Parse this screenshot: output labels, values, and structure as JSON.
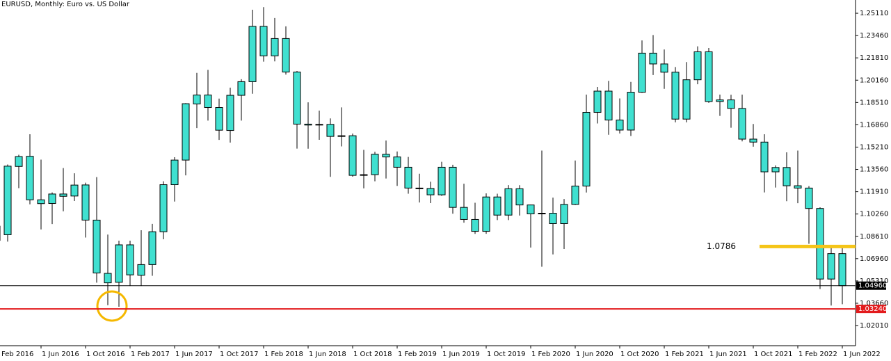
{
  "chart_data": {
    "type": "candlestick",
    "title": "EURUSD, Monthly:  Euro vs. US Dollar",
    "categories": [
      "Feb 2016",
      null,
      null,
      null,
      "1 Jun 2016",
      null,
      null,
      null,
      "1 Oct 2016",
      null,
      null,
      null,
      "1 Feb 2017",
      null,
      null,
      null,
      "1 Jun 2017",
      null,
      null,
      null,
      "1 Oct 2017",
      null,
      null,
      null,
      "1 Feb 2018",
      null,
      null,
      null,
      "1 Jun 2018",
      null,
      null,
      null,
      "1 Oct 2018",
      null,
      null,
      null,
      "1 Feb 2019",
      null,
      null,
      null,
      "1 Jun 2019",
      null,
      null,
      null,
      "1 Oct 2019",
      null,
      null,
      null,
      "1 Feb 2020",
      null,
      null,
      null,
      "1 Jun 2020",
      null,
      null,
      null,
      "1 Oct 2020",
      null,
      null,
      null,
      "1 Feb 2021",
      null,
      null,
      null,
      "1 Jun 2021",
      null,
      null,
      null,
      "1 Oct 2021",
      null,
      null,
      null,
      "1 Feb 2022",
      null,
      null,
      null,
      "1 Jun 2022"
    ],
    "open": [
      1.0831,
      1.0873,
      1.1378,
      1.1453,
      1.1131,
      1.1104,
      1.1174,
      1.1159,
      1.1241,
      1.0981,
      1.0587,
      1.0521,
      1.0798,
      1.0573,
      1.0652,
      1.0895,
      1.1243,
      1.1425,
      1.184,
      1.1906,
      1.1814,
      1.1644,
      1.1904,
      1.2005,
      1.2414,
      1.2196,
      1.2324,
      1.2076,
      1.1691,
      1.1684,
      1.1689,
      1.16,
      1.1605,
      1.1312,
      1.1317,
      1.1468,
      1.1448,
      1.1372,
      1.1218,
      1.1215,
      1.1168,
      1.1372,
      1.1075,
      1.0986,
      1.0898,
      1.1152,
      1.1018,
      1.1213,
      1.1093,
      1.1027,
      1.1032,
      1.0955,
      1.1097,
      1.1233,
      1.1778,
      1.1935,
      1.1721,
      1.1647,
      1.1927,
      1.2216,
      1.2136,
      1.2075,
      1.1728,
      1.2019,
      1.2226,
      1.1858,
      1.187,
      1.1807,
      1.158,
      1.1558,
      1.1338,
      1.137,
      1.1235,
      1.1218,
      1.1067,
      1.0545,
      1.0733
    ],
    "high": [
      1.1376,
      1.1392,
      1.1464,
      1.1616,
      1.1428,
      1.1186,
      1.1366,
      1.1327,
      1.1258,
      1.1299,
      1.0874,
      1.0829,
      1.0829,
      1.0906,
      1.0953,
      1.1268,
      1.1446,
      1.1846,
      1.207,
      1.2092,
      1.188,
      1.1961,
      1.2023,
      1.2537,
      1.2556,
      1.2476,
      1.2414,
      1.2084,
      1.1852,
      1.1791,
      1.1733,
      1.1815,
      1.1621,
      1.15,
      1.1486,
      1.157,
      1.1489,
      1.1448,
      1.1324,
      1.1265,
      1.1412,
      1.139,
      1.125,
      1.1109,
      1.1179,
      1.1176,
      1.124,
      1.1239,
      1.1095,
      1.1495,
      1.1147,
      1.1137,
      1.1422,
      1.1909,
      1.1966,
      1.2011,
      1.1881,
      1.2003,
      1.231,
      1.235,
      1.2243,
      1.2113,
      1.215,
      1.2266,
      1.2254,
      1.1909,
      1.1908,
      1.1909,
      1.1692,
      1.1616,
      1.1386,
      1.1482,
      1.1495,
      1.1233,
      1.1076,
      1.0787,
      1.0773
    ],
    "low": [
      1.081,
      1.0822,
      1.1217,
      1.1098,
      1.0912,
      1.0952,
      1.1046,
      1.1122,
      1.0852,
      1.0518,
      1.0352,
      1.034,
      1.0494,
      1.0494,
      1.0569,
      1.0839,
      1.1118,
      1.1312,
      1.1662,
      1.1717,
      1.1574,
      1.1554,
      1.1717,
      1.1916,
      1.2153,
      1.2155,
      1.2057,
      1.151,
      1.1509,
      1.1575,
      1.1301,
      1.1526,
      1.1302,
      1.1216,
      1.1268,
      1.1289,
      1.1234,
      1.1176,
      1.1111,
      1.1107,
      1.116,
      1.1028,
      1.0962,
      1.0879,
      1.088,
      1.0981,
      1.0981,
      1.1015,
      1.0778,
      1.0636,
      1.0727,
      1.0767,
      1.1092,
      1.1185,
      1.1696,
      1.1612,
      1.1622,
      1.1603,
      1.1922,
      1.2054,
      1.1952,
      1.1704,
      1.1704,
      1.1986,
      1.1848,
      1.1752,
      1.1664,
      1.1563,
      1.1524,
      1.1186,
      1.1222,
      1.1121,
      1.1106,
      1.0806,
      1.0471,
      1.0349,
      1.0359
    ],
    "close": [
      1.0936,
      1.138,
      1.1451,
      1.1131,
      1.1103,
      1.1174,
      1.1157,
      1.124,
      1.0981,
      1.059,
      1.0517,
      1.0798,
      1.0576,
      1.0652,
      1.0895,
      1.1243,
      1.1425,
      1.1842,
      1.1906,
      1.1814,
      1.1646,
      1.1904,
      1.2005,
      1.2414,
      1.2196,
      1.2324,
      1.2076,
      1.1691,
      1.1684,
      1.1689,
      1.16,
      1.1605,
      1.1312,
      1.1317,
      1.1468,
      1.1448,
      1.1372,
      1.1218,
      1.1215,
      1.1168,
      1.1372,
      1.1075,
      1.0986,
      1.0898,
      1.1152,
      1.1018,
      1.1213,
      1.1093,
      1.1027,
      1.1032,
      1.0955,
      1.1097,
      1.1233,
      1.1778,
      1.1935,
      1.1721,
      1.1647,
      1.1927,
      1.2216,
      1.2136,
      1.2075,
      1.1728,
      1.2019,
      1.2226,
      1.1858,
      1.187,
      1.1807,
      1.158,
      1.1558,
      1.1338,
      1.137,
      1.1235,
      1.1218,
      1.1067,
      1.0545,
      1.0733,
      1.0496
    ],
    "color": "#40e0d0",
    "ylim": [
      1.0052,
      1.2609
    ],
    "yticks": [
      {
        "value": 1.2511,
        "label": "1.25110"
      },
      {
        "value": 1.2346,
        "label": "1.23460"
      },
      {
        "value": 1.2181,
        "label": "1.21810"
      },
      {
        "value": 1.2016,
        "label": "1.20160"
      },
      {
        "value": 1.1851,
        "label": "1.18510"
      },
      {
        "value": 1.1686,
        "label": "1.16860"
      },
      {
        "value": 1.1521,
        "label": "1.15210"
      },
      {
        "value": 1.1356,
        "label": "1.13560"
      },
      {
        "value": 1.1191,
        "label": "1.11910"
      },
      {
        "value": 1.1026,
        "label": "1.10260"
      },
      {
        "value": 1.0861,
        "label": "1.08610"
      },
      {
        "value": 1.0696,
        "label": "1.06960"
      },
      {
        "value": 1.0531,
        "label": "1.05310"
      },
      {
        "value": 1.0366,
        "label": "1.03660"
      },
      {
        "value": 1.0201,
        "label": "1.02010"
      }
    ],
    "hlines": [
      {
        "value": 1.0496,
        "label": "1.04960",
        "color": "#000000"
      },
      {
        "value": 1.0324,
        "label": "1.03240",
        "color": "#e31a1c"
      }
    ],
    "marker_line": {
      "value": 1.0786,
      "color": "#f5c518"
    }
  }
}
